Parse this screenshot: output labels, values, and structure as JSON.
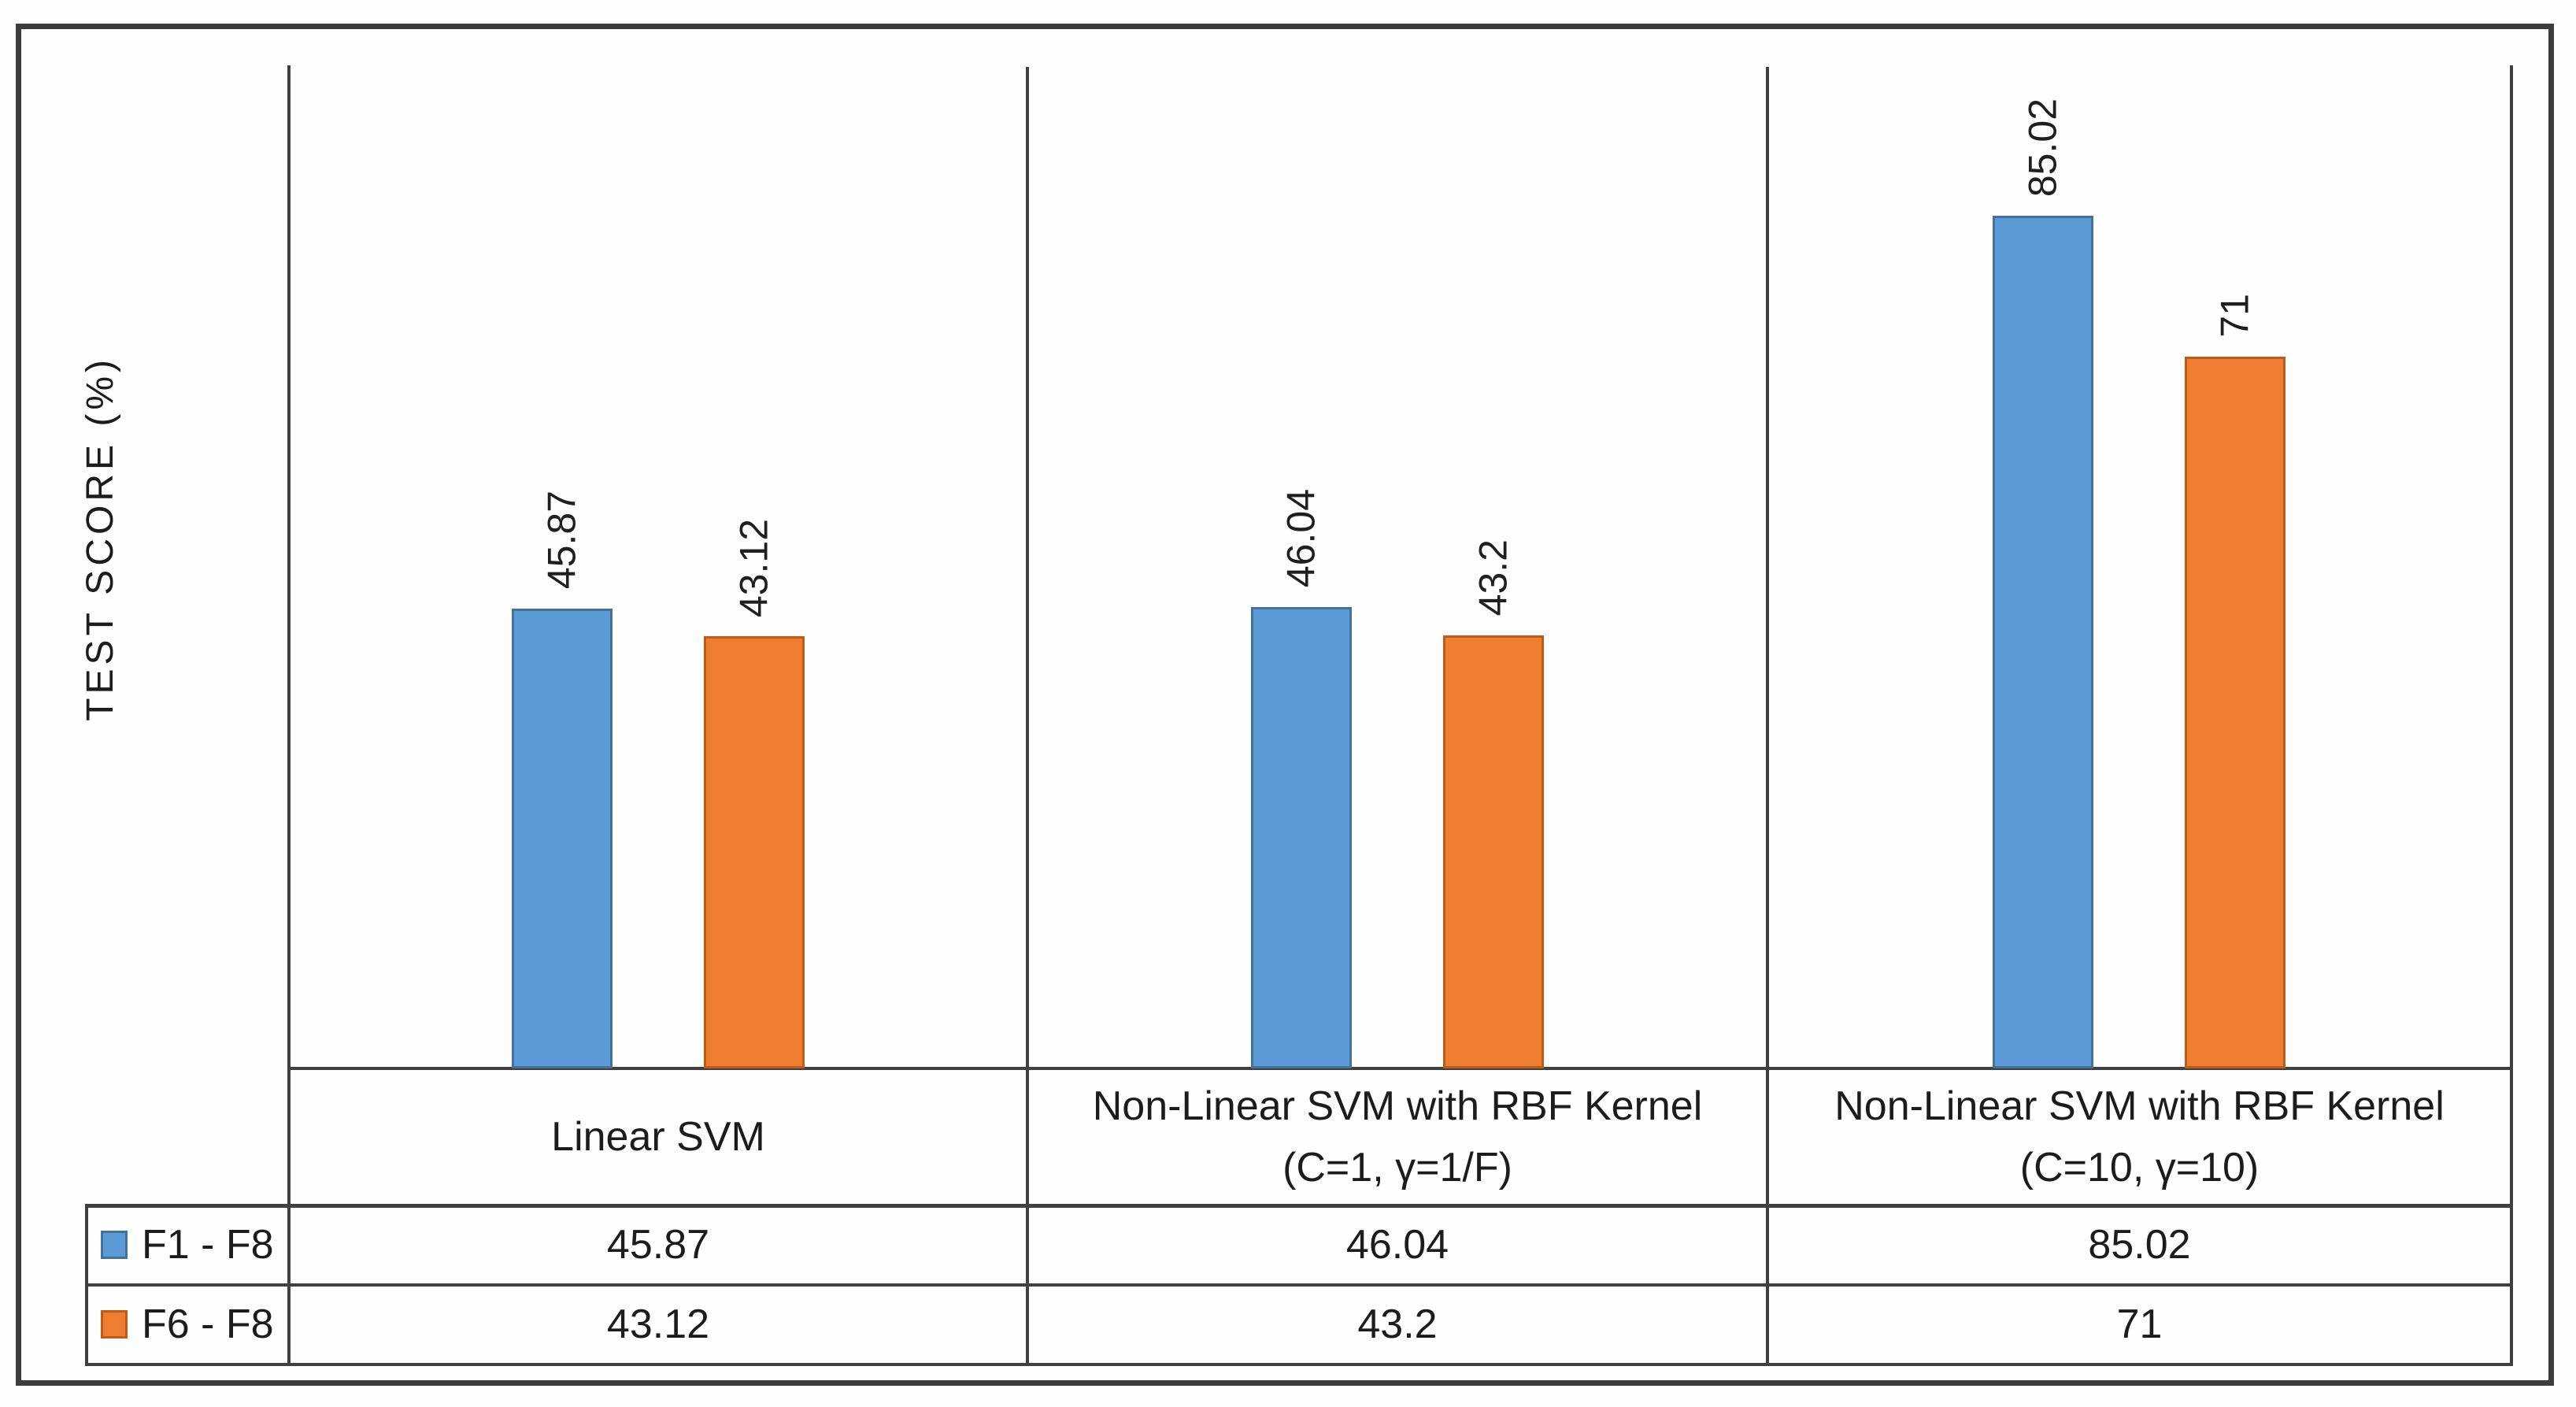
{
  "chart_data": {
    "type": "bar",
    "title": "",
    "ylabel": "TEST SCORE (%)",
    "xlabel": "",
    "ylim": [
      0,
      100
    ],
    "grid": false,
    "data_labels": true,
    "data_label_rotation": 90,
    "legend_position": "table-left",
    "categories": [
      "Linear SVM",
      "Non-Linear SVM with RBF Kernel (C=1, γ=1/F)",
      "Non-Linear SVM with RBF Kernel (C=10, γ=10)"
    ],
    "category_lines": [
      [
        "Linear SVM"
      ],
      [
        "Non-Linear SVM with RBF Kernel",
        "(C=1, γ=1/F)"
      ],
      [
        "Non-Linear SVM with RBF Kernel",
        "(C=10, γ=10)"
      ]
    ],
    "series": [
      {
        "name": "F1 - F8",
        "color": "#5B9BD5",
        "border_color": "#41719C",
        "values": [
          45.87,
          46.04,
          85.02
        ]
      },
      {
        "name": "F6 - F8",
        "color": "#ED7D31",
        "border_color": "#C05A15",
        "values": [
          43.12,
          43.2,
          71
        ]
      }
    ]
  },
  "colors": {
    "line": "#404040",
    "frame": "#3c3c3c",
    "text": "#1c1c1c",
    "background": "#fefefe"
  }
}
